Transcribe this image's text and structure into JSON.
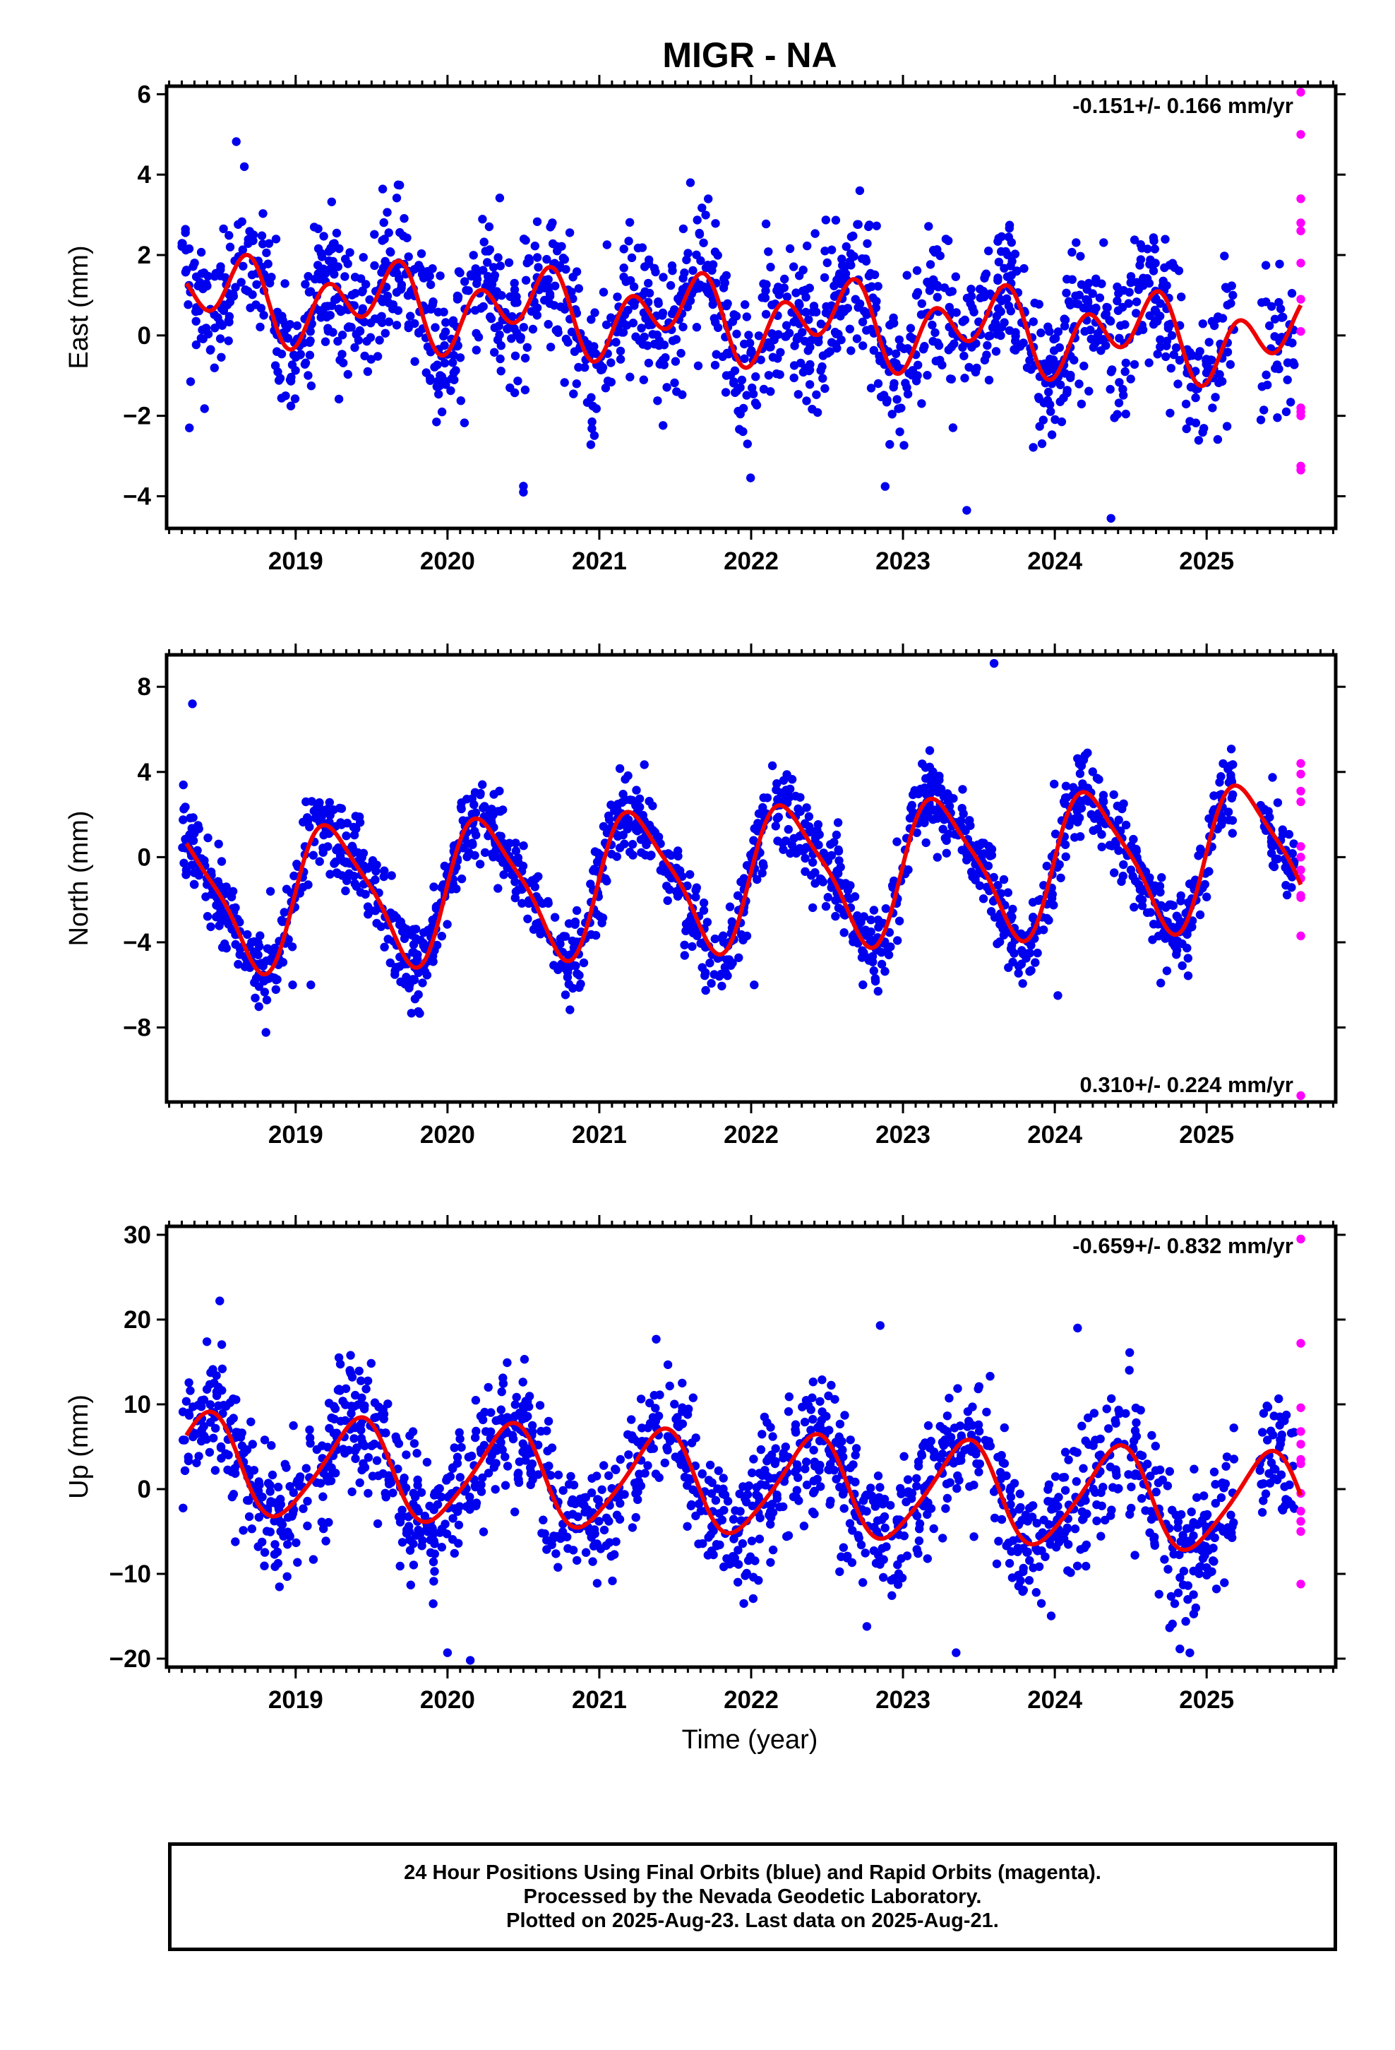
{
  "figure": {
    "title": "MIGR - NA",
    "xlabel": "Time (year)",
    "footer": [
      "24 Hour Positions Using Final Orbits (blue) and Rapid Orbits (magenta).",
      "Processed by the Nevada Geodetic Laboratory.",
      "Plotted on 2025-Aug-23. Last data on 2025-Aug-21."
    ]
  },
  "colors": {
    "final_orbits": "#0000ee",
    "rapid_orbits": "#ff00ff",
    "model_fit": "#ee0000",
    "axes": "#000000"
  },
  "chart_data": [
    {
      "type": "scatter",
      "panel": "east",
      "ylabel": "East (mm)",
      "rate_label": "-0.151+/- 0.166 mm/yr",
      "rate_label_position": "top-right",
      "xlim": [
        2018.15,
        2025.85
      ],
      "ylim": [
        -4.8,
        6.2
      ],
      "xticks": [
        2019,
        2020,
        2021,
        2022,
        2023,
        2024,
        2025
      ],
      "yticks": [
        -4,
        -2,
        0,
        2,
        4,
        6
      ],
      "series": [
        {
          "name": "Final Orbits",
          "kind": "points",
          "color": "#0000ee",
          "data_span": [
            2018.25,
            2025.58
          ],
          "gap": [
            2025.18,
            2025.35
          ],
          "model": {
            "offset": 0.4,
            "rate": -0.151,
            "a1": 0.55,
            "phase1_year_fraction": 0.55,
            "a2": 0.75,
            "phase2_year_fraction": 0.7
          },
          "scatter_std": 0.9,
          "points_per_year": 220,
          "outlier_points": [
            [
              2020.5,
              -3.9
            ],
            [
              2020.5,
              -3.75
            ],
            [
              2023.42,
              -4.35
            ],
            [
              2024.37,
              -4.55
            ],
            [
              2018.3,
              -2.3
            ],
            [
              2021.6,
              3.8
            ]
          ]
        },
        {
          "name": "Rapid Orbits",
          "kind": "points",
          "color": "#ff00ff",
          "points": [
            [
              2025.62,
              6.05
            ],
            [
              2025.62,
              5.0
            ],
            [
              2025.62,
              3.4
            ],
            [
              2025.62,
              2.8
            ],
            [
              2025.62,
              2.6
            ],
            [
              2025.62,
              1.8
            ],
            [
              2025.62,
              0.9
            ],
            [
              2025.62,
              0.1
            ],
            [
              2025.62,
              -1.8
            ],
            [
              2025.62,
              -1.9
            ],
            [
              2025.62,
              -2.0
            ],
            [
              2025.62,
              -3.25
            ],
            [
              2025.62,
              -3.35
            ]
          ]
        },
        {
          "name": "Model",
          "kind": "curve",
          "color": "#ee0000",
          "span": [
            2018.28,
            2025.62
          ],
          "model": {
            "offset": 0.4,
            "rate": -0.151,
            "a1": 0.55,
            "phase1_year_fraction": 0.55,
            "a2": 0.75,
            "phase2_year_fraction": 0.7
          }
        }
      ]
    },
    {
      "type": "scatter",
      "panel": "north",
      "ylabel": "North (mm)",
      "rate_label": "0.310+/- 0.224 mm/yr",
      "rate_label_position": "bottom-right",
      "xlim": [
        2018.15,
        2025.85
      ],
      "ylim": [
        -11.5,
        9.5
      ],
      "xticks": [
        2019,
        2020,
        2021,
        2022,
        2023,
        2024,
        2025
      ],
      "yticks": [
        -8,
        -4,
        0,
        4,
        8
      ],
      "series": [
        {
          "name": "Final Orbits",
          "kind": "points",
          "color": "#0000ee",
          "data_span": [
            2018.25,
            2025.58
          ],
          "gap": [
            2025.18,
            2025.35
          ],
          "model": {
            "offset": -0.9,
            "rate": 0.31,
            "a1": 3.2,
            "phase1_year_fraction": 0.25,
            "a2": 0.7,
            "phase2_year_fraction": 0.1
          },
          "scatter_std": 0.95,
          "points_per_year": 220,
          "outlier_points": [
            [
              2023.6,
              9.1
            ],
            [
              2024.02,
              -6.5
            ],
            [
              2022.02,
              -6.0
            ],
            [
              2018.98,
              -6.0
            ],
            [
              2019.1,
              -6.0
            ],
            [
              2018.32,
              7.2
            ]
          ]
        },
        {
          "name": "Rapid Orbits",
          "kind": "points",
          "color": "#ff00ff",
          "points": [
            [
              2025.62,
              4.4
            ],
            [
              2025.62,
              3.9
            ],
            [
              2025.62,
              3.1
            ],
            [
              2025.62,
              2.6
            ],
            [
              2025.62,
              0.5
            ],
            [
              2025.62,
              0.0
            ],
            [
              2025.62,
              -0.6
            ],
            [
              2025.62,
              -1.0
            ],
            [
              2025.62,
              -1.8
            ],
            [
              2025.62,
              -1.9
            ],
            [
              2025.62,
              -3.7
            ],
            [
              2025.62,
              -11.2
            ]
          ]
        },
        {
          "name": "Model",
          "kind": "curve",
          "color": "#ee0000",
          "span": [
            2018.28,
            2025.62
          ],
          "model": {
            "offset": -0.9,
            "rate": 0.31,
            "a1": 3.2,
            "phase1_year_fraction": 0.25,
            "a2": 0.7,
            "phase2_year_fraction": 0.1
          }
        }
      ]
    },
    {
      "type": "scatter",
      "panel": "up",
      "ylabel": "Up (mm)",
      "rate_label": "-0.659+/- 0.832 mm/yr",
      "rate_label_position": "top-right",
      "xlim": [
        2018.15,
        2025.85
      ],
      "ylim": [
        -21,
        31
      ],
      "xticks": [
        2019,
        2020,
        2021,
        2022,
        2023,
        2024,
        2025
      ],
      "yticks": [
        -20,
        -10,
        0,
        10,
        20,
        30
      ],
      "series": [
        {
          "name": "Final Orbits",
          "kind": "points",
          "color": "#0000ee",
          "data_span": [
            2018.25,
            2025.58
          ],
          "gap": [
            2025.18,
            2025.35
          ],
          "model": {
            "offset": 0.5,
            "rate": -0.659,
            "a1": 5.8,
            "phase1_year_fraction": 0.4,
            "a2": 0.9,
            "phase2_year_fraction": 0.5
          },
          "scatter_std": 3.8,
          "points_per_year": 220,
          "outlier_points": [
            [
              2018.5,
              22.2
            ],
            [
              2024.15,
              19.0
            ],
            [
              2022.85,
              19.3
            ],
            [
              2020.0,
              -19.3
            ],
            [
              2020.15,
              -20.2
            ],
            [
              2023.35,
              -19.3
            ]
          ]
        },
        {
          "name": "Rapid Orbits",
          "kind": "points",
          "color": "#ff00ff",
          "points": [
            [
              2025.62,
              29.5
            ],
            [
              2025.62,
              17.2
            ],
            [
              2025.62,
              9.6
            ],
            [
              2025.62,
              6.8
            ],
            [
              2025.62,
              5.3
            ],
            [
              2025.62,
              3.5
            ],
            [
              2025.62,
              3.0
            ],
            [
              2025.62,
              -0.5
            ],
            [
              2025.62,
              -2.6
            ],
            [
              2025.62,
              -3.8
            ],
            [
              2025.62,
              -5.0
            ],
            [
              2025.62,
              -11.2
            ]
          ]
        },
        {
          "name": "Model",
          "kind": "curve",
          "color": "#ee0000",
          "span": [
            2018.28,
            2025.62
          ],
          "model": {
            "offset": 0.5,
            "rate": -0.659,
            "a1": 5.8,
            "phase1_year_fraction": 0.4,
            "a2": 0.9,
            "phase2_year_fraction": 0.5
          }
        }
      ]
    }
  ]
}
